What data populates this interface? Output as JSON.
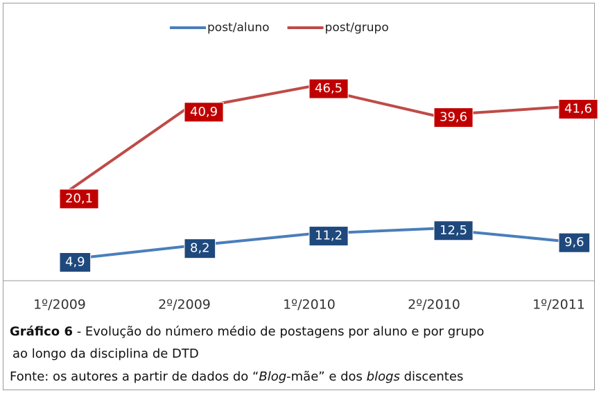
{
  "chart_data": {
    "type": "line",
    "categories": [
      "1º/2009",
      "2º/2009",
      "1º/2010",
      "2º/2010",
      "1º/2011"
    ],
    "series": [
      {
        "name": "post/aluno",
        "color": "#4a7ebb",
        "label_color": "#1f497d",
        "values": [
          4.9,
          8.2,
          11.2,
          12.5,
          9.6
        ],
        "value_labels": [
          "4,9",
          "8,2",
          "11,2",
          "12,5",
          "9,6"
        ]
      },
      {
        "name": "post/grupo",
        "color": "#be4b48",
        "label_color": "#c00000",
        "values": [
          20.1,
          40.9,
          46.5,
          39.6,
          41.6
        ],
        "value_labels": [
          "20,1",
          "40,9",
          "46,5",
          "39,6",
          "41,6"
        ]
      }
    ],
    "ylim": [
      0,
      50
    ],
    "legend": "top"
  },
  "caption": {
    "label": "Gráfico 6",
    "text": " - Evolução do número médio de postagens por aluno e por grupo",
    "text2": "ao longo da disciplina de DTD",
    "source": [
      "Fonte: os autores a partir de dados do “",
      "Blog",
      "-mãe” e dos ",
      "blogs",
      " discentes"
    ]
  }
}
